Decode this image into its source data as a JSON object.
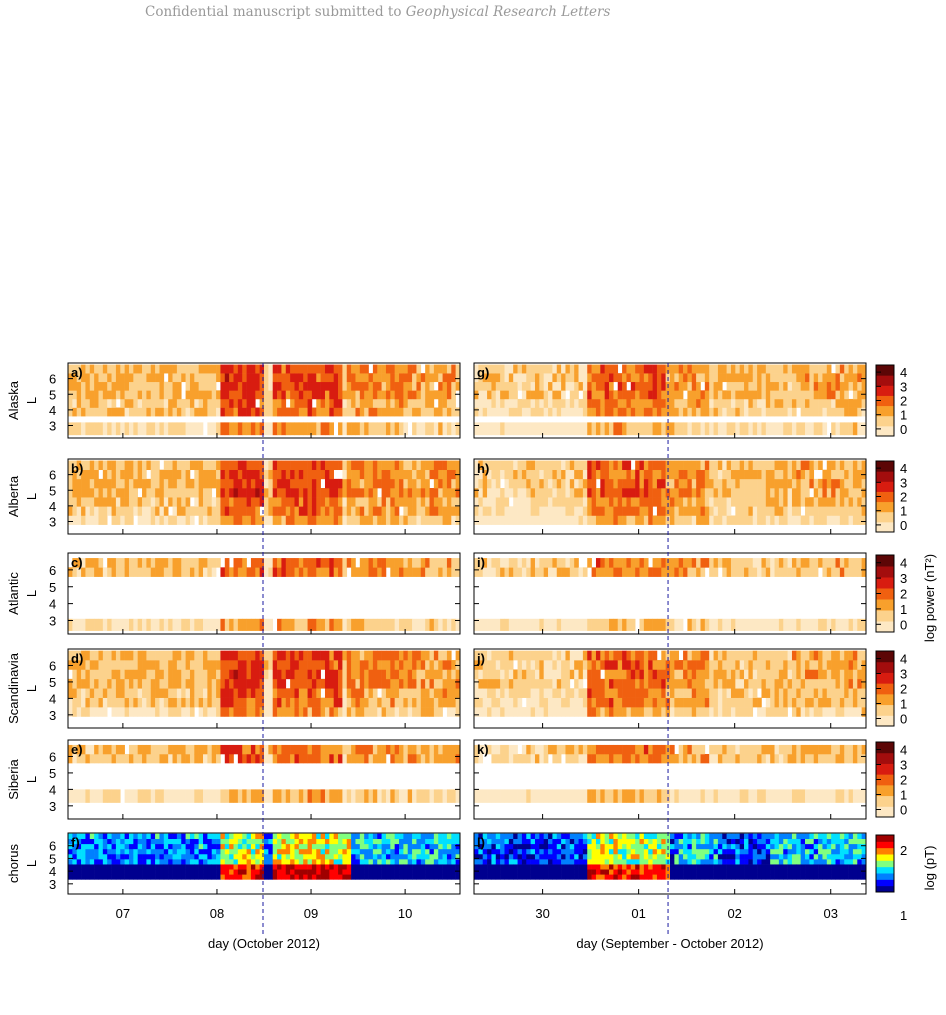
{
  "header": {
    "text": "Confidential manuscript submitted to ",
    "journal": "Geophysical Research Letters"
  },
  "colors": {
    "power_scale": [
      "#fde8c4",
      "#fcd28c",
      "#f8a02c",
      "#f06010",
      "#d81c10",
      "#a30d0d",
      "#5c0606"
    ],
    "chorus_scale": [
      "#00008f",
      "#0000ff",
      "#0080ff",
      "#00e0ff",
      "#80ff80",
      "#ffff00",
      "#ff8000",
      "#ff0000",
      "#a00000"
    ],
    "event_line": "#1a1aa0",
    "empty": "#ffffff"
  },
  "row_labels": [
    "Alaska",
    "Alberta",
    "Atlantic",
    "Scandinavia",
    "Siberia",
    "chorus"
  ],
  "l_axis_label": "L",
  "panels_left": [
    "a)",
    "b)",
    "c)",
    "d)",
    "e)",
    "f)"
  ],
  "panels_right": [
    "g)",
    "h)",
    "i)",
    "j)",
    "k)",
    "l)"
  ],
  "left_xticks": [
    "07",
    "08",
    "09",
    "10"
  ],
  "right_xticks": [
    "30",
    "01",
    "02",
    "03"
  ],
  "left_xlabel": "day (October 2012)",
  "right_xlabel": "day (September - October 2012)",
  "power_cb_label": "log power (nT²)",
  "chorus_cb_label": "log (pT)",
  "chart_data": [
    {
      "type": "heatmap",
      "description": "Stacked time-L heatmaps of magnetometer ULF wave power by station chain, plus chorus wave amplitude, for two storm intervals",
      "rows": [
        "Alaska",
        "Alberta",
        "Atlantic",
        "Scandinavia",
        "Siberia",
        "chorus"
      ],
      "xlabel_left": "day (October 2012)",
      "xticks_left": [
        "07",
        "08",
        "09",
        "10"
      ],
      "xlabel_right": "day (September - October 2012)",
      "xticks_right": [
        "30",
        "01",
        "02",
        "03"
      ],
      "ylabel": "L",
      "yticks": [
        3,
        4,
        5,
        6
      ],
      "ylim": [
        2.2,
        7.0
      ],
      "power_colorbar": {
        "label": "log power (nT²)",
        "ticks": [
          0,
          1,
          2,
          3,
          4
        ],
        "range": [
          -0.5,
          4.5
        ]
      },
      "chorus_colorbar": {
        "label": "log (pT)",
        "ticks": [
          1,
          2
        ],
        "range": [
          1,
          2.4
        ]
      },
      "L_bands_observed": {
        "Alaska": [
          3,
          4,
          5,
          6
        ],
        "Alberta": [
          3,
          4,
          5,
          6
        ],
        "Atlantic": [
          3,
          6
        ],
        "Scandinavia": [
          3,
          4,
          5,
          6
        ],
        "Siberia": [
          3.7,
          6
        ],
        "chorus": [
          3.5,
          4,
          5,
          6
        ]
      },
      "event_marker_left": "08 (day fraction ~0.65)",
      "event_marker_right": "01 (day fraction ~0.3)"
    }
  ]
}
